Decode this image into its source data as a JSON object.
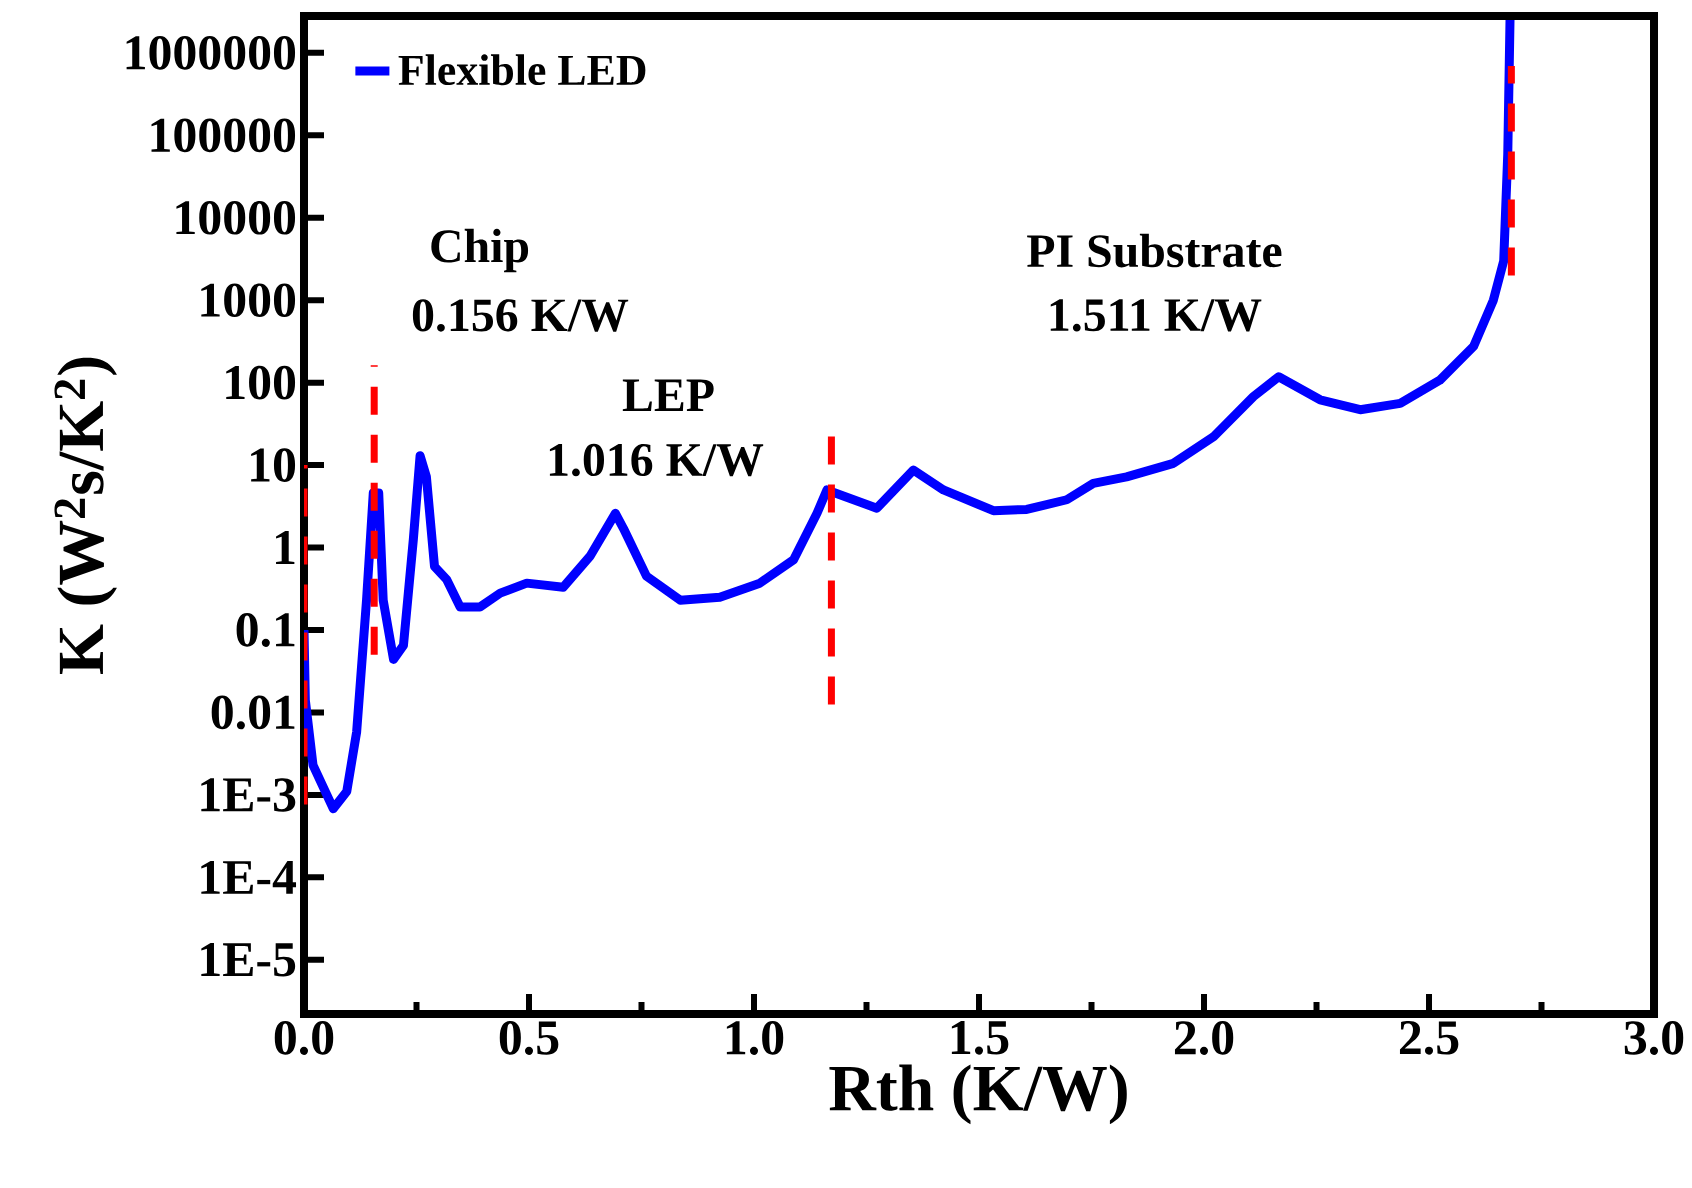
{
  "chart_data": {
    "type": "line",
    "xlabel": "Rth (K/W)",
    "ylabel": "K (W$^{2}$s/K$^{2}$)",
    "log": "y",
    "xlim": [
      0,
      3.0
    ],
    "xticks": [
      {
        "value": 0,
        "label": "0.0"
      },
      0.5,
      {
        "value": 1,
        "label": "1.0"
      },
      1.5,
      {
        "value": 2,
        "label": "2.0"
      },
      2.5,
      {
        "value": 3,
        "label": "3.0"
      }
    ],
    "ylim": [
      2.2e-06,
      2800000.0
    ],
    "yticks": [
      {
        "value": 1e-05,
        "label": "1E-5"
      },
      {
        "value": 0.0001,
        "label": "1E-4"
      },
      {
        "value": 0.001,
        "label": "1E-3"
      },
      0.01,
      0.1,
      1,
      10,
      100,
      1000,
      10000,
      100000,
      1000000
    ],
    "legend": "top left",
    "grid": false,
    "marker": "none",
    "line_style": "solid",
    "series": [
      {
        "name": "Flexible LED",
        "color": "#0000ff",
        "x": [
          0.0,
          0.003,
          0.02,
          0.065,
          0.095,
          0.117,
          0.139,
          0.154,
          0.166,
          0.176,
          0.199,
          0.221,
          0.243,
          0.258,
          0.272,
          0.29,
          0.317,
          0.347,
          0.391,
          0.436,
          0.495,
          0.576,
          0.636,
          0.692,
          0.71,
          0.761,
          0.836,
          0.924,
          1.013,
          1.088,
          1.14,
          1.162,
          1.273,
          1.354,
          1.421,
          1.532,
          1.606,
          1.695,
          1.754,
          1.828,
          1.932,
          2.021,
          2.11,
          2.166,
          2.258,
          2.347,
          2.436,
          2.524,
          2.599,
          2.643,
          2.666,
          2.675,
          2.68
        ],
        "values": [
          0.1,
          0.014,
          0.0023,
          0.00068,
          0.0011,
          0.0058,
          0.23,
          4.6,
          4.6,
          0.23,
          0.044,
          0.065,
          1.26,
          13,
          7.2,
          0.59,
          0.41,
          0.19,
          0.19,
          0.28,
          0.37,
          0.33,
          0.79,
          2.6,
          1.7,
          0.45,
          0.23,
          0.25,
          0.37,
          0.71,
          2.6,
          5.0,
          3.0,
          8.7,
          5.0,
          2.8,
          2.9,
          3.8,
          6.0,
          7.2,
          10.5,
          22,
          68,
          118,
          62,
          47,
          56,
          107,
          275,
          1000,
          3000,
          59000,
          2500000
        ]
      }
    ],
    "ref_lines": [
      {
        "axis": "x",
        "value": 0,
        "color": "#ff0000",
        "line_style": "dashed"
      },
      {
        "axis": "x",
        "value": 0.156,
        "color": "#ff0000",
        "line_style": "dashed"
      },
      {
        "axis": "x",
        "value": 1.172,
        "color": "#ff0000",
        "line_style": "dashed"
      },
      {
        "axis": "x",
        "value": 2.683,
        "color": "#ff0000",
        "line_style": "dashed"
      }
    ],
    "annotations": [
      "Chip",
      "0.156 K/W",
      "LEP",
      "1.016 K/W",
      "PI Substrate",
      "1.511 K/W"
    ]
  }
}
